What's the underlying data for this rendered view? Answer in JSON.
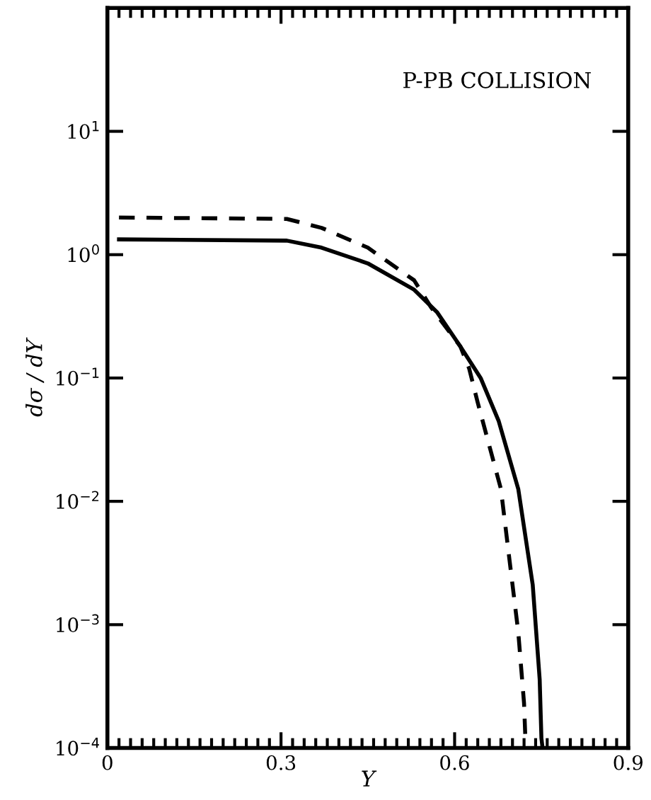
{
  "chart_data": {
    "type": "line",
    "annotations": [
      "P-PB COLLISION"
    ],
    "xlabel": "Y",
    "ylabel": "dσ / dY",
    "log": "y",
    "xlim": [
      0,
      0.9
    ],
    "ylim": [
      0.0001,
      100
    ],
    "xticks": [
      0,
      0.3,
      0.6,
      0.9
    ],
    "yticks": [
      {
        "value": 0.0001,
        "label": "10$^{−4}$"
      },
      {
        "value": 0.001,
        "label": "10$^{−3}$"
      },
      {
        "value": 0.01,
        "label": "10$^{−2}$"
      },
      {
        "value": 0.1,
        "label": "10$^{−1}$"
      },
      {
        "value": 1,
        "label": "10$^{0}$"
      },
      {
        "value": 10,
        "label": "10$^{1}$"
      }
    ],
    "grid": false,
    "legend": false,
    "series": [
      {
        "color": "#000000",
        "line_style": "solid",
        "x": [
          0.02,
          0.31,
          0.37,
          0.45,
          0.53,
          0.57,
          0.61,
          0.645,
          0.676,
          0.71,
          0.735,
          0.747,
          0.75,
          0.752
        ],
        "values": [
          1.33,
          1.3,
          1.14,
          0.85,
          0.52,
          0.34,
          0.18,
          0.1,
          0.045,
          0.0126,
          0.0021,
          0.00036,
          0.00012,
          0.0001
        ]
      },
      {
        "color": "#000000",
        "line_style": "dashed",
        "x": [
          0.02,
          0.31,
          0.37,
          0.45,
          0.53,
          0.56,
          0.61,
          0.625,
          0.64,
          0.68,
          0.695,
          0.71,
          0.72,
          0.722
        ],
        "values": [
          2.0,
          1.95,
          1.65,
          1.14,
          0.62,
          0.37,
          0.18,
          0.12,
          0.063,
          0.0126,
          0.0033,
          0.00087,
          0.00023,
          0.00013
        ]
      }
    ]
  }
}
